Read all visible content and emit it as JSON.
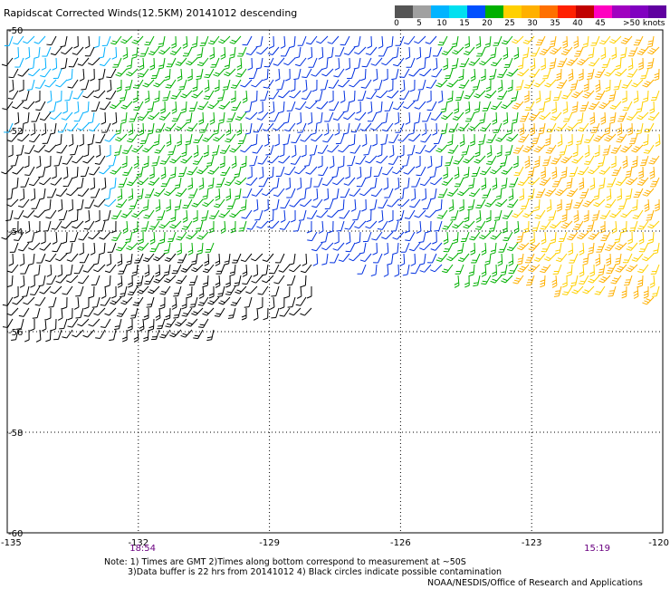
{
  "title": "Rapidscat Corrected Winds(12.5KM) 20141012 descending",
  "legend": {
    "labels": [
      "0",
      "5",
      "10",
      "15",
      "20",
      "25",
      "30",
      "35",
      "40",
      "45",
      ">50 knots"
    ],
    "colors": [
      "#555555",
      "#a0a0a0",
      "#00b4ff",
      "#00e0f0",
      "#0050ff",
      "#00b000",
      "#ffd000",
      "#ffb000",
      "#ff7000",
      "#ff2000",
      "#c00000",
      "#ff00c0",
      "#a000c0",
      "#8000c0",
      "#6000a0"
    ]
  },
  "axes": {
    "x_ticks": [
      "-135",
      "-132",
      "-129",
      "-126",
      "-123",
      "-120"
    ],
    "y_ticks": [
      "-50",
      "-52",
      "-54",
      "-56",
      "-58",
      "-60"
    ],
    "xlim": [
      -135,
      -120
    ],
    "ylim": [
      -60,
      -50
    ],
    "grid": "dotted"
  },
  "time_labels": [
    {
      "text": "18:54",
      "lon": -131.9
    },
    {
      "text": "15:19",
      "lon": -121.5
    }
  ],
  "notes": [
    "Note: 1) Times are GMT 2)Times along bottom correspond to measurement at ~50S",
    "3)Data buffer is 22 hrs from 20141012 4) Black circles indicate possible contamination"
  ],
  "credit": "NOAA/NESDIS/Office of Research and Applications",
  "map_data": {
    "type": "wind-barbs",
    "swath_description": "Descending swath covering lon -135 to -120, lat -50 to ~-56; speeds mostly 10-30 kt",
    "speed_zones": [
      {
        "lon_range": [
          -135,
          -132.5
        ],
        "speed_kt": [
          0,
          10
        ]
      },
      {
        "lon_range": [
          -132.5,
          -129.5
        ],
        "speed_kt": [
          15,
          20
        ]
      },
      {
        "lon_range": [
          -129.5,
          -125
        ],
        "speed_kt": [
          10,
          15
        ]
      },
      {
        "lon_range": [
          -125,
          -123.2
        ],
        "speed_kt": [
          15,
          20
        ]
      },
      {
        "lon_range": [
          -123.2,
          -120
        ],
        "speed_kt": [
          20,
          30
        ]
      }
    ]
  }
}
